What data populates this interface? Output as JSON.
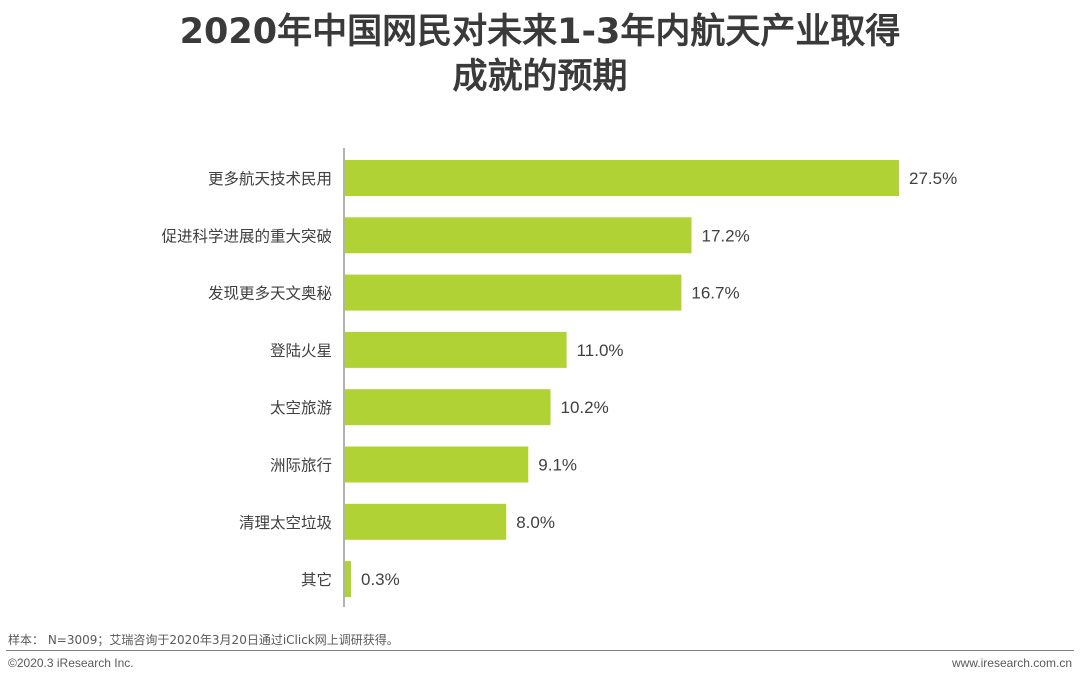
{
  "chart_data": {
    "type": "bar",
    "orientation": "horizontal",
    "title_lines": [
      "2020年中国网民对未来1-3年内航天产业取得",
      "成就的预期"
    ],
    "categories": [
      "更多航天技术民用",
      "促进科学进展的重大突破",
      "发现更多天文奥秘",
      "登陆火星",
      "太空旅游",
      "洲际旅行",
      "清理太空垃圾",
      "其它"
    ],
    "values": [
      27.5,
      17.2,
      16.7,
      11.0,
      10.2,
      9.1,
      8.0,
      0.3
    ],
    "value_labels": [
      "27.5%",
      "17.2%",
      "16.7%",
      "11.0%",
      "10.2%",
      "9.1%",
      "8.0%",
      "0.3%"
    ],
    "unit": "%",
    "bar_color": "#b1d235",
    "axis_color": "#7f7f7f",
    "grid": false,
    "legend": "none"
  },
  "footer": {
    "note": "样本： N=3009；艾瑞咨询于2020年3月20日通过iClick网上调研获得。",
    "copyright": "©2020.3 iResearch Inc.",
    "website": "www.iresearch.com.cn"
  }
}
